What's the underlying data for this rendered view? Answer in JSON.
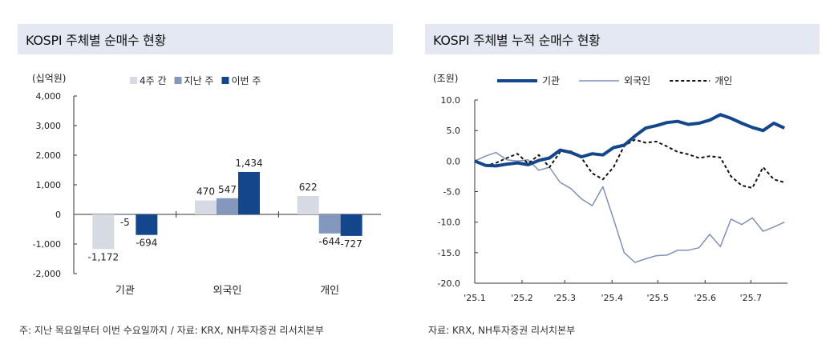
{
  "left": {
    "title": "KOSPI 주체별 순매수 현황",
    "source": "주: 지난 목요일부터 이번 수요일까지 / 자료: KRX, NH투자증권 리서치본부"
  },
  "right": {
    "title": "KOSPI 주체별 누적 순매수 현황",
    "source": "자료: KRX, NH투자증권 리서치본부"
  },
  "chart_data": [
    {
      "type": "bar",
      "unit_label": "(십억원)",
      "categories": [
        "기관",
        "외국인",
        "개인"
      ],
      "series": [
        {
          "name": "4주 간",
          "color": "#d6dae2",
          "values": [
            -1172,
            470,
            622
          ]
        },
        {
          "name": "지난 주",
          "color": "#8497bd",
          "values": [
            -5,
            547,
            -644
          ]
        },
        {
          "name": "이번 주",
          "color": "#14468c",
          "values": [
            -694,
            1434,
            -727
          ]
        }
      ],
      "data_labels": [
        [
          "-1,172",
          "-5",
          "-694"
        ],
        [
          "470",
          "547",
          "1,434"
        ],
        [
          "622",
          "-644",
          "-727"
        ]
      ],
      "ylim": [
        -2000,
        4000
      ],
      "yticks": [
        -2000,
        -1000,
        0,
        1000,
        2000,
        3000,
        4000
      ],
      "ytick_labels": [
        "-2,000",
        "-1,000",
        "0",
        "1,000",
        "2,000",
        "3,000",
        "4,000"
      ],
      "legend": "top-center",
      "grid": false
    },
    {
      "type": "line",
      "unit_label": "(조원)",
      "x_range": [
        "2025-01-01",
        "2025-07-25"
      ],
      "xticks": [
        "2025-01-01",
        "2025-02-01",
        "2025-03-01",
        "2025-04-01",
        "2025-05-01",
        "2025-06-01",
        "2025-07-01"
      ],
      "xtick_labels": [
        "'25.1",
        "'25.2",
        "'25.3",
        "'25.4",
        "'25.5",
        "'25.6",
        "'25.7"
      ],
      "ylim": [
        -20,
        10
      ],
      "yticks": [
        -20,
        -15,
        -10,
        -5,
        0,
        5,
        10
      ],
      "ytick_labels": [
        "-20.0",
        "-15.0",
        "-10.0",
        "-5.0",
        "0.0",
        "5.0",
        "10.0"
      ],
      "legend": "top",
      "grid": false,
      "series": [
        {
          "name": "기관",
          "color": "#14468c",
          "style": "solid-thick",
          "x": [
            "2025-01-01",
            "2025-01-08",
            "2025-01-15",
            "2025-01-22",
            "2025-01-29",
            "2025-02-05",
            "2025-02-12",
            "2025-02-19",
            "2025-02-26",
            "2025-03-05",
            "2025-03-12",
            "2025-03-19",
            "2025-03-26",
            "2025-04-02",
            "2025-04-09",
            "2025-04-16",
            "2025-04-23",
            "2025-04-30",
            "2025-05-07",
            "2025-05-14",
            "2025-05-21",
            "2025-05-28",
            "2025-06-04",
            "2025-06-11",
            "2025-06-18",
            "2025-06-25",
            "2025-07-02",
            "2025-07-09",
            "2025-07-16",
            "2025-07-23"
          ],
          "values": [
            0.0,
            -0.7,
            -0.8,
            -0.5,
            -0.3,
            -0.6,
            0.1,
            0.5,
            1.8,
            1.4,
            0.7,
            1.2,
            1.0,
            2.2,
            2.6,
            4.1,
            5.4,
            5.8,
            6.3,
            6.5,
            6.0,
            6.2,
            6.7,
            7.6,
            7.0,
            6.2,
            5.5,
            5.0,
            6.2,
            5.4
          ]
        },
        {
          "name": "외국인",
          "color": "#7f90b8",
          "style": "solid-thin",
          "x": [
            "2025-01-01",
            "2025-01-08",
            "2025-01-15",
            "2025-01-22",
            "2025-01-29",
            "2025-02-05",
            "2025-02-12",
            "2025-02-19",
            "2025-02-26",
            "2025-03-05",
            "2025-03-12",
            "2025-03-19",
            "2025-03-26",
            "2025-04-02",
            "2025-04-09",
            "2025-04-16",
            "2025-04-23",
            "2025-04-30",
            "2025-05-07",
            "2025-05-14",
            "2025-05-21",
            "2025-05-28",
            "2025-06-04",
            "2025-06-11",
            "2025-06-18",
            "2025-06-25",
            "2025-07-02",
            "2025-07-09",
            "2025-07-16",
            "2025-07-23"
          ],
          "values": [
            0.0,
            0.8,
            1.4,
            0.2,
            0.0,
            0.2,
            -1.5,
            -1.0,
            -3.5,
            -4.5,
            -6.2,
            -7.3,
            -4.2,
            -9.5,
            -15.0,
            -16.6,
            -16.0,
            -15.5,
            -15.4,
            -14.6,
            -14.6,
            -14.2,
            -12.0,
            -14.0,
            -9.5,
            -10.4,
            -9.3,
            -11.5,
            -10.8,
            -10.0
          ]
        },
        {
          "name": "개인",
          "color": "#111111",
          "style": "dashed",
          "x": [
            "2025-01-01",
            "2025-01-08",
            "2025-01-15",
            "2025-01-22",
            "2025-01-29",
            "2025-02-05",
            "2025-02-12",
            "2025-02-19",
            "2025-02-26",
            "2025-03-05",
            "2025-03-12",
            "2025-03-19",
            "2025-03-26",
            "2025-04-02",
            "2025-04-09",
            "2025-04-16",
            "2025-04-23",
            "2025-04-30",
            "2025-05-07",
            "2025-05-14",
            "2025-05-21",
            "2025-05-28",
            "2025-06-04",
            "2025-06-11",
            "2025-06-18",
            "2025-06-25",
            "2025-07-02",
            "2025-07-09",
            "2025-07-16",
            "2025-07-23"
          ],
          "values": [
            0.0,
            -0.8,
            -0.3,
            0.5,
            1.2,
            -0.4,
            1.0,
            -1.0,
            1.5,
            1.6,
            0.5,
            -2.0,
            -3.0,
            -1.0,
            2.5,
            3.5,
            3.0,
            3.2,
            2.4,
            1.5,
            1.1,
            0.5,
            0.8,
            0.6,
            -2.5,
            -4.0,
            -4.4,
            -1.0,
            -3.0,
            -3.5
          ]
        }
      ]
    }
  ]
}
